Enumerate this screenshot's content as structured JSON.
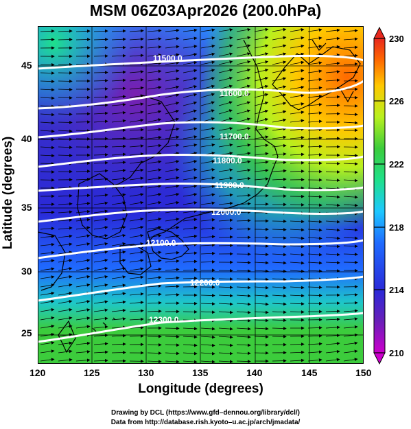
{
  "title": "MSM 06Z03Apr2026 (200.0hPa)",
  "axes": {
    "xlabel": "Longitude (degrees)",
    "ylabel": "Latitude  (degrees)",
    "x_ticks": [
      "120",
      "125",
      "130",
      "135",
      "140",
      "145",
      "150"
    ],
    "y_ticks": [
      "25",
      "30",
      "35",
      "40",
      "45"
    ],
    "xlim": [
      120,
      150
    ],
    "ylim": [
      22.5,
      48
    ]
  },
  "colorbar": {
    "min": 210,
    "max": 230,
    "labels": [
      "230",
      "226",
      "222",
      "218",
      "214",
      "210"
    ],
    "colors": [
      "#cc00cc",
      "#6a1fb8",
      "#2a2ad8",
      "#1f6bff",
      "#1ec8ff",
      "#1fe08a",
      "#3ccc3c",
      "#b8f01e",
      "#ffc800",
      "#ff6a00",
      "#e8281e"
    ]
  },
  "contours": [
    {
      "label": "11500.0",
      "lat": 45.2
    },
    {
      "label": "11600.0",
      "lat": 42.8
    },
    {
      "label": "11700.0",
      "lat": 40.6
    },
    {
      "label": "11800.0",
      "lat": 38.2
    },
    {
      "label": "11900.0",
      "lat": 36.0
    },
    {
      "label": "12000.0",
      "lat": 33.9
    },
    {
      "label": "12100.0",
      "lat": 31.8
    },
    {
      "label": "12200.0",
      "lat": 29.4
    },
    {
      "label": "12300.0",
      "lat": 26.5
    }
  ],
  "credits": [
    "Drawing by DCL (https://www.gfd–dennou.org/library/dcl/)",
    "Data from http://database.rish.kyoto–u.ac.jp/arch/jmadata/"
  ]
}
